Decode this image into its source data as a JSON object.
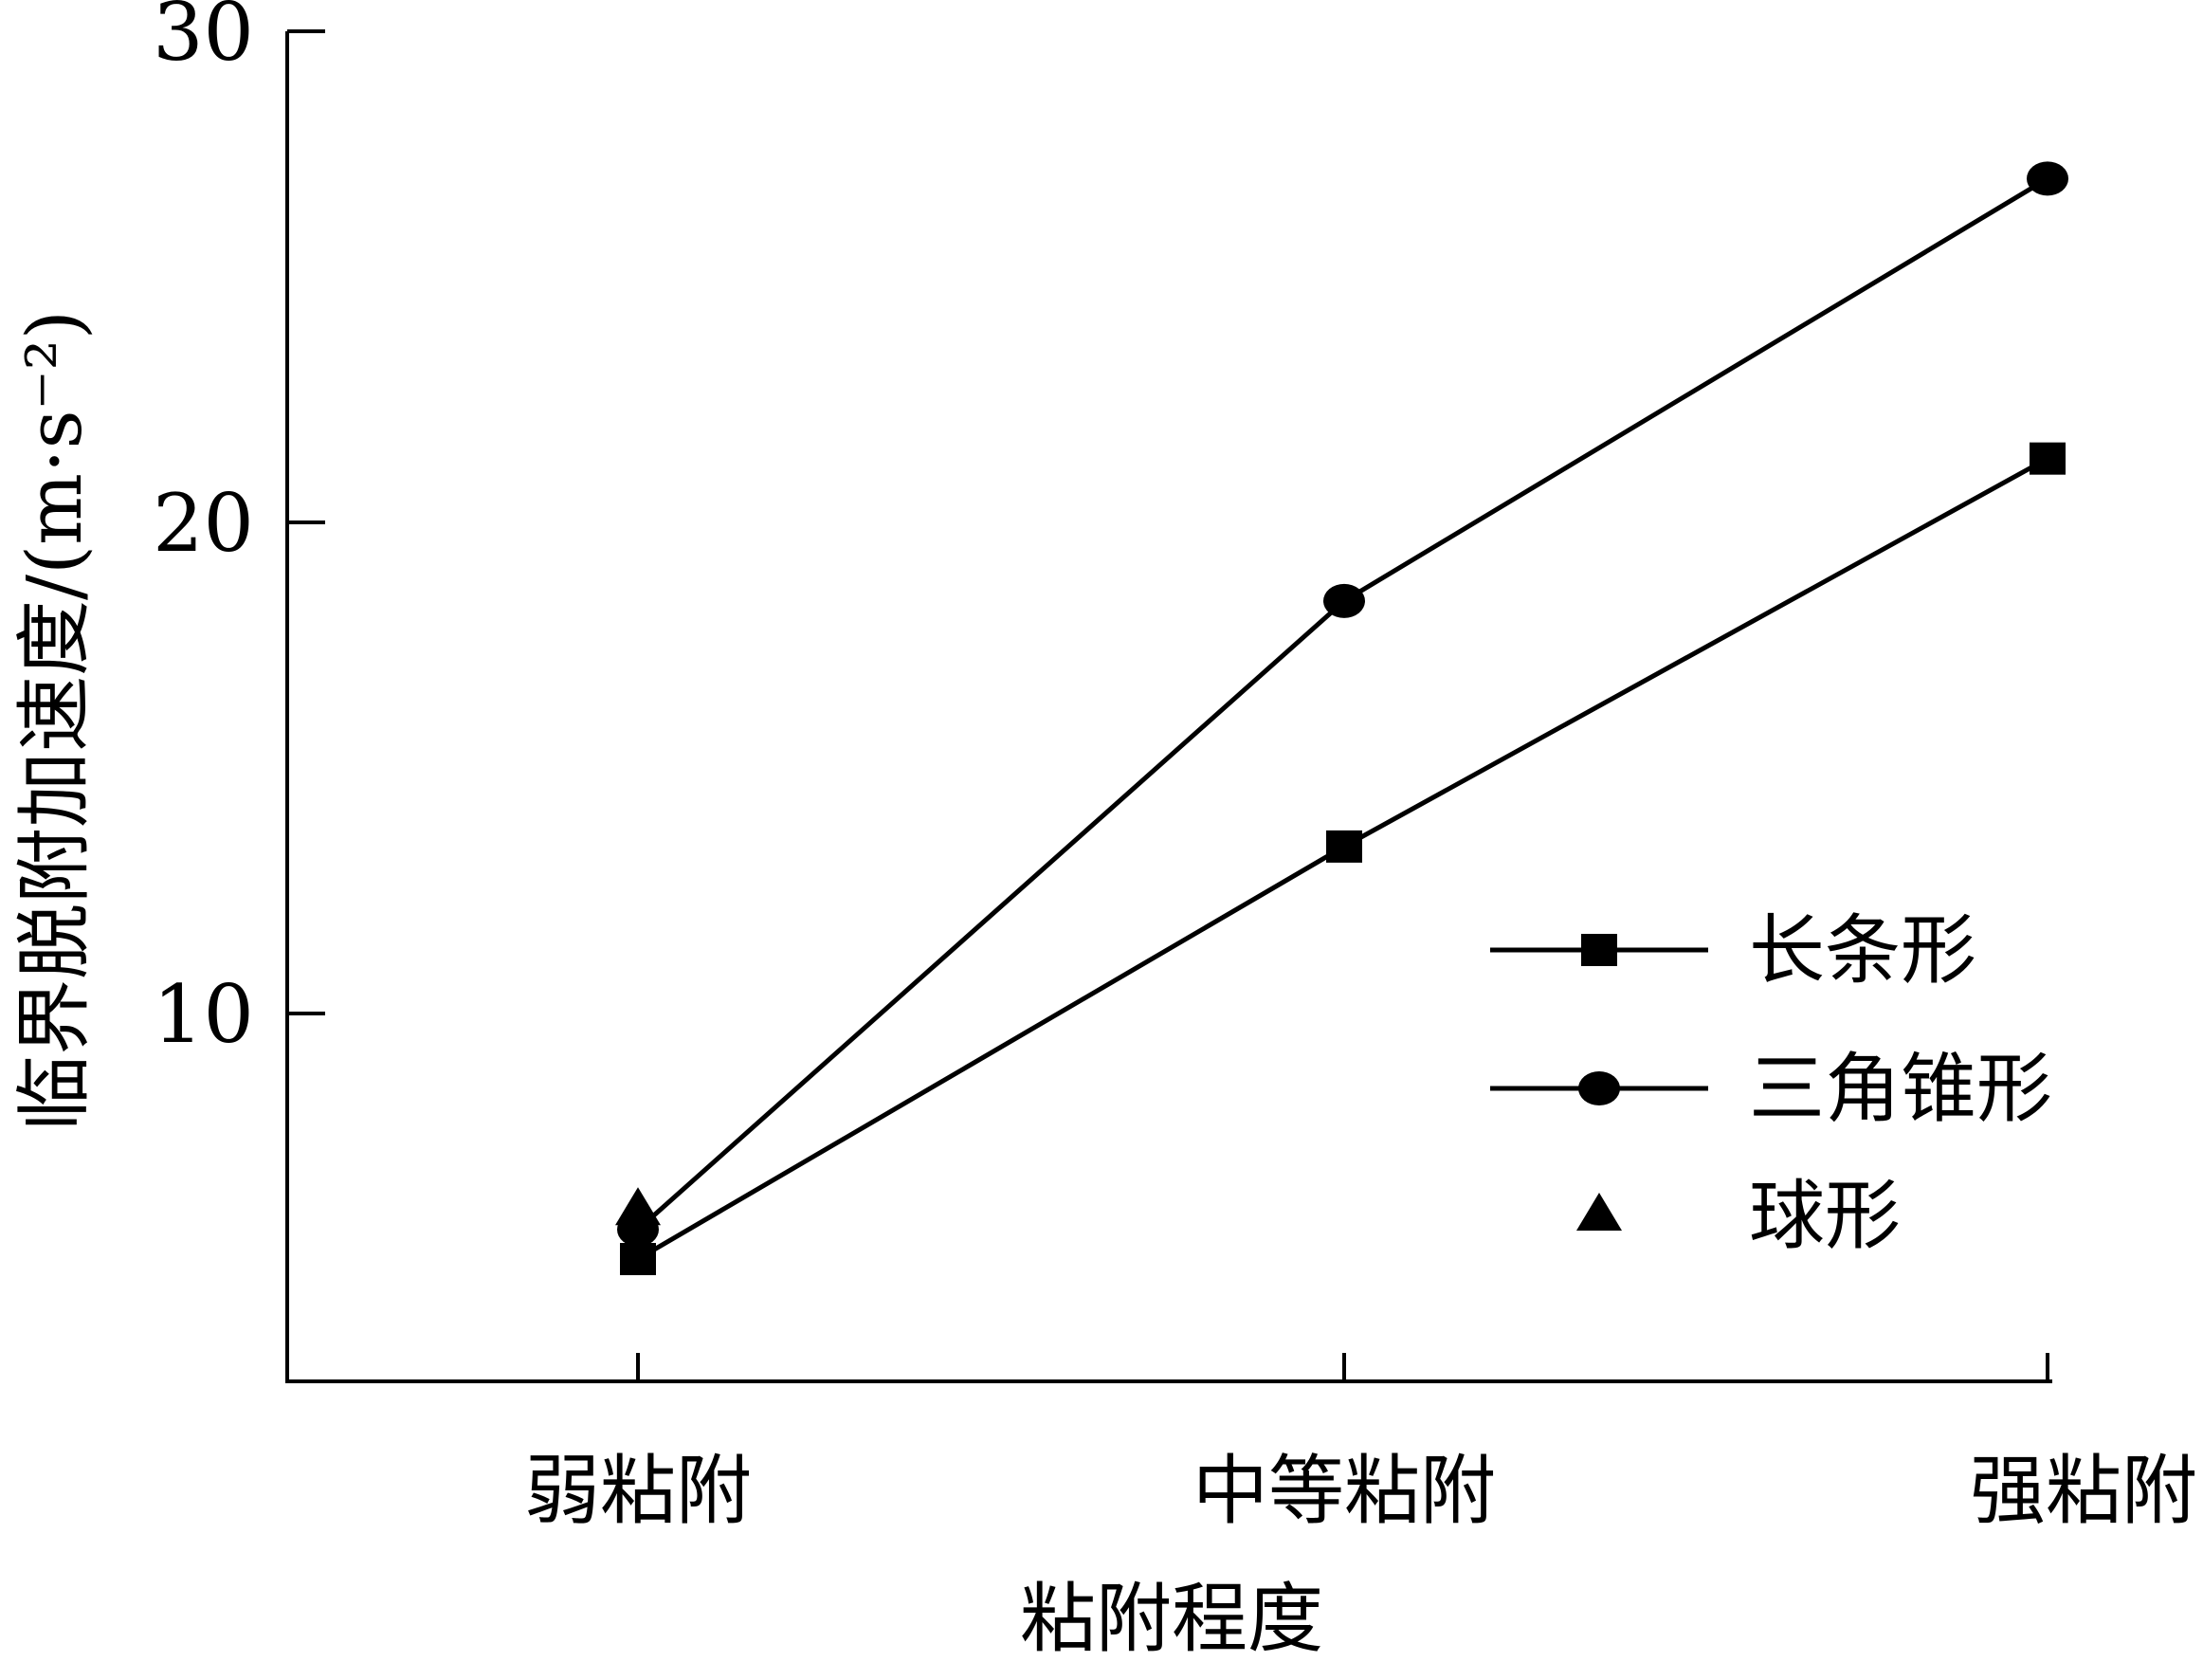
{
  "chart_data": {
    "type": "line",
    "xlabel": "粘附程度",
    "ylabel": "临界脱附加速度/(m·s⁻²)",
    "categories": [
      "弱粘附",
      "中等粘附",
      "强粘附"
    ],
    "yticks": [
      10,
      20,
      30
    ],
    "ylim": [
      2.5,
      30
    ],
    "grid": false,
    "legend_position": "right",
    "series": [
      {
        "name": "长条形",
        "marker": "square",
        "line": true,
        "values": [
          5.0,
          13.4,
          21.3
        ]
      },
      {
        "name": "三角锥形",
        "marker": "circle",
        "line": true,
        "values": [
          5.6,
          18.4,
          27.0
        ]
      },
      {
        "name": "球形",
        "marker": "triangle",
        "line": false,
        "values": [
          6.0,
          null,
          null
        ]
      }
    ]
  }
}
